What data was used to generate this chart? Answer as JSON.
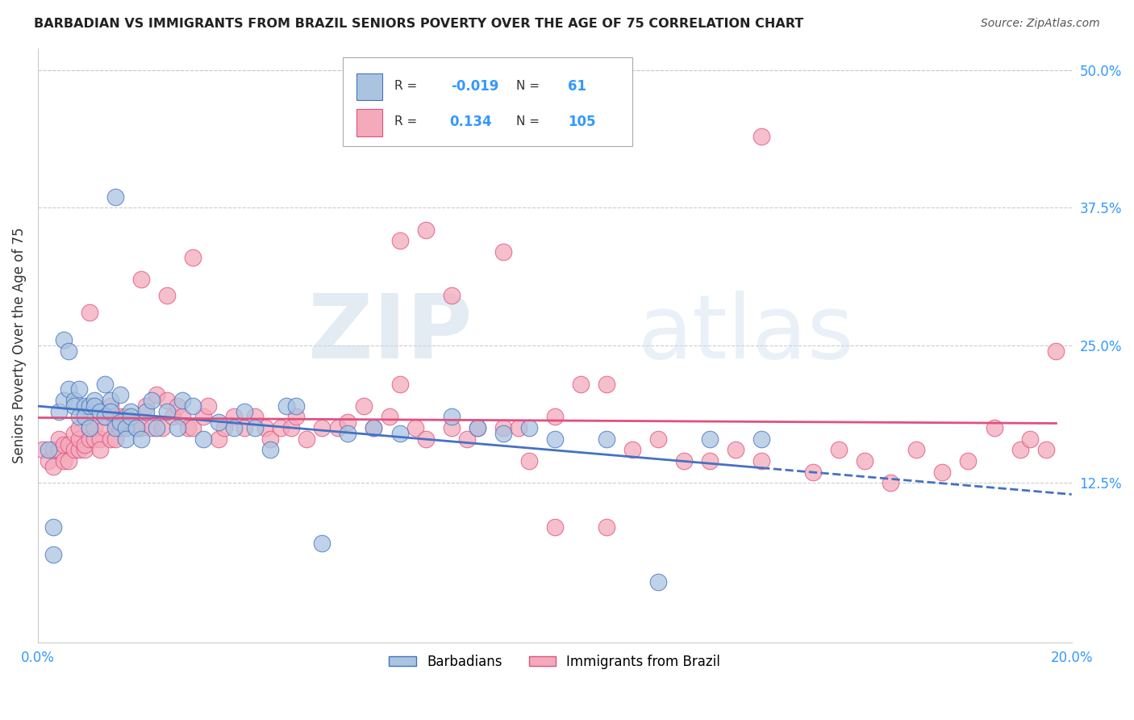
{
  "title": "BARBADIAN VS IMMIGRANTS FROM BRAZIL SENIORS POVERTY OVER THE AGE OF 75 CORRELATION CHART",
  "source": "Source: ZipAtlas.com",
  "ylabel": "Seniors Poverty Over the Age of 75",
  "watermark": "ZIPatlas",
  "xlim": [
    0.0,
    0.2
  ],
  "ylim": [
    -0.02,
    0.52
  ],
  "xticks": [
    0.0,
    0.05,
    0.1,
    0.15,
    0.2
  ],
  "xtick_labels": [
    "0.0%",
    "",
    "",
    "",
    "20.0%"
  ],
  "ytick_labels_right": [
    "12.5%",
    "25.0%",
    "37.5%",
    "50.0%"
  ],
  "ytick_vals_right": [
    0.125,
    0.25,
    0.375,
    0.5
  ],
  "legend_barbadian_R": "-0.019",
  "legend_barbadian_N": "61",
  "legend_brazil_R": "0.134",
  "legend_brazil_N": "105",
  "barbadian_color": "#aac4e0",
  "brazil_color": "#f4aabb",
  "trend_barbadian_color": "#4472c4",
  "trend_brazil_color": "#e05080",
  "grid_color": "#cccccc",
  "background_color": "#ffffff",
  "barbadian_x": [
    0.002,
    0.003,
    0.004,
    0.005,
    0.006,
    0.007,
    0.007,
    0.008,
    0.008,
    0.009,
    0.009,
    0.01,
    0.01,
    0.011,
    0.011,
    0.012,
    0.013,
    0.013,
    0.014,
    0.014,
    0.015,
    0.015,
    0.016,
    0.016,
    0.017,
    0.017,
    0.018,
    0.018,
    0.019,
    0.02,
    0.021,
    0.022,
    0.023,
    0.025,
    0.027,
    0.028,
    0.03,
    0.032,
    0.035,
    0.038,
    0.04,
    0.042,
    0.045,
    0.048,
    0.05,
    0.055,
    0.06,
    0.065,
    0.07,
    0.08,
    0.085,
    0.09,
    0.095,
    0.1,
    0.11,
    0.12,
    0.13,
    0.14,
    0.005,
    0.006,
    0.003
  ],
  "barbadian_y": [
    0.155,
    0.085,
    0.19,
    0.2,
    0.21,
    0.2,
    0.195,
    0.21,
    0.185,
    0.195,
    0.185,
    0.195,
    0.175,
    0.2,
    0.195,
    0.19,
    0.185,
    0.215,
    0.2,
    0.19,
    0.385,
    0.175,
    0.205,
    0.18,
    0.175,
    0.165,
    0.19,
    0.185,
    0.175,
    0.165,
    0.19,
    0.2,
    0.175,
    0.19,
    0.175,
    0.2,
    0.195,
    0.165,
    0.18,
    0.175,
    0.19,
    0.175,
    0.155,
    0.195,
    0.195,
    0.07,
    0.17,
    0.175,
    0.17,
    0.185,
    0.175,
    0.17,
    0.175,
    0.165,
    0.165,
    0.035,
    0.165,
    0.165,
    0.255,
    0.245,
    0.06
  ],
  "brazil_x": [
    0.001,
    0.002,
    0.003,
    0.003,
    0.004,
    0.004,
    0.005,
    0.005,
    0.006,
    0.006,
    0.007,
    0.007,
    0.008,
    0.008,
    0.008,
    0.009,
    0.009,
    0.01,
    0.01,
    0.011,
    0.011,
    0.012,
    0.012,
    0.013,
    0.013,
    0.014,
    0.014,
    0.015,
    0.015,
    0.016,
    0.016,
    0.017,
    0.018,
    0.019,
    0.02,
    0.021,
    0.022,
    0.023,
    0.024,
    0.025,
    0.026,
    0.027,
    0.028,
    0.029,
    0.03,
    0.032,
    0.033,
    0.035,
    0.036,
    0.038,
    0.04,
    0.042,
    0.044,
    0.045,
    0.047,
    0.049,
    0.05,
    0.052,
    0.055,
    0.058,
    0.06,
    0.063,
    0.065,
    0.068,
    0.07,
    0.073,
    0.075,
    0.08,
    0.083,
    0.085,
    0.09,
    0.093,
    0.095,
    0.1,
    0.105,
    0.11,
    0.115,
    0.12,
    0.125,
    0.13,
    0.135,
    0.14,
    0.15,
    0.155,
    0.16,
    0.165,
    0.17,
    0.175,
    0.18,
    0.185,
    0.19,
    0.192,
    0.195,
    0.197,
    0.01,
    0.02,
    0.025,
    0.03,
    0.07,
    0.075,
    0.08,
    0.09,
    0.1,
    0.11,
    0.14
  ],
  "brazil_y": [
    0.155,
    0.145,
    0.155,
    0.14,
    0.155,
    0.165,
    0.145,
    0.16,
    0.145,
    0.16,
    0.155,
    0.17,
    0.155,
    0.165,
    0.175,
    0.155,
    0.16,
    0.175,
    0.165,
    0.165,
    0.175,
    0.165,
    0.155,
    0.175,
    0.185,
    0.195,
    0.165,
    0.18,
    0.165,
    0.185,
    0.175,
    0.185,
    0.18,
    0.175,
    0.175,
    0.195,
    0.175,
    0.205,
    0.175,
    0.2,
    0.185,
    0.195,
    0.185,
    0.175,
    0.175,
    0.185,
    0.195,
    0.165,
    0.175,
    0.185,
    0.175,
    0.185,
    0.175,
    0.165,
    0.175,
    0.175,
    0.185,
    0.165,
    0.175,
    0.175,
    0.18,
    0.195,
    0.175,
    0.185,
    0.215,
    0.175,
    0.165,
    0.175,
    0.165,
    0.175,
    0.175,
    0.175,
    0.145,
    0.185,
    0.215,
    0.215,
    0.155,
    0.165,
    0.145,
    0.145,
    0.155,
    0.145,
    0.135,
    0.155,
    0.145,
    0.125,
    0.155,
    0.135,
    0.145,
    0.175,
    0.155,
    0.165,
    0.155,
    0.245,
    0.28,
    0.31,
    0.295,
    0.33,
    0.345,
    0.355,
    0.295,
    0.335,
    0.085,
    0.085,
    0.44
  ]
}
